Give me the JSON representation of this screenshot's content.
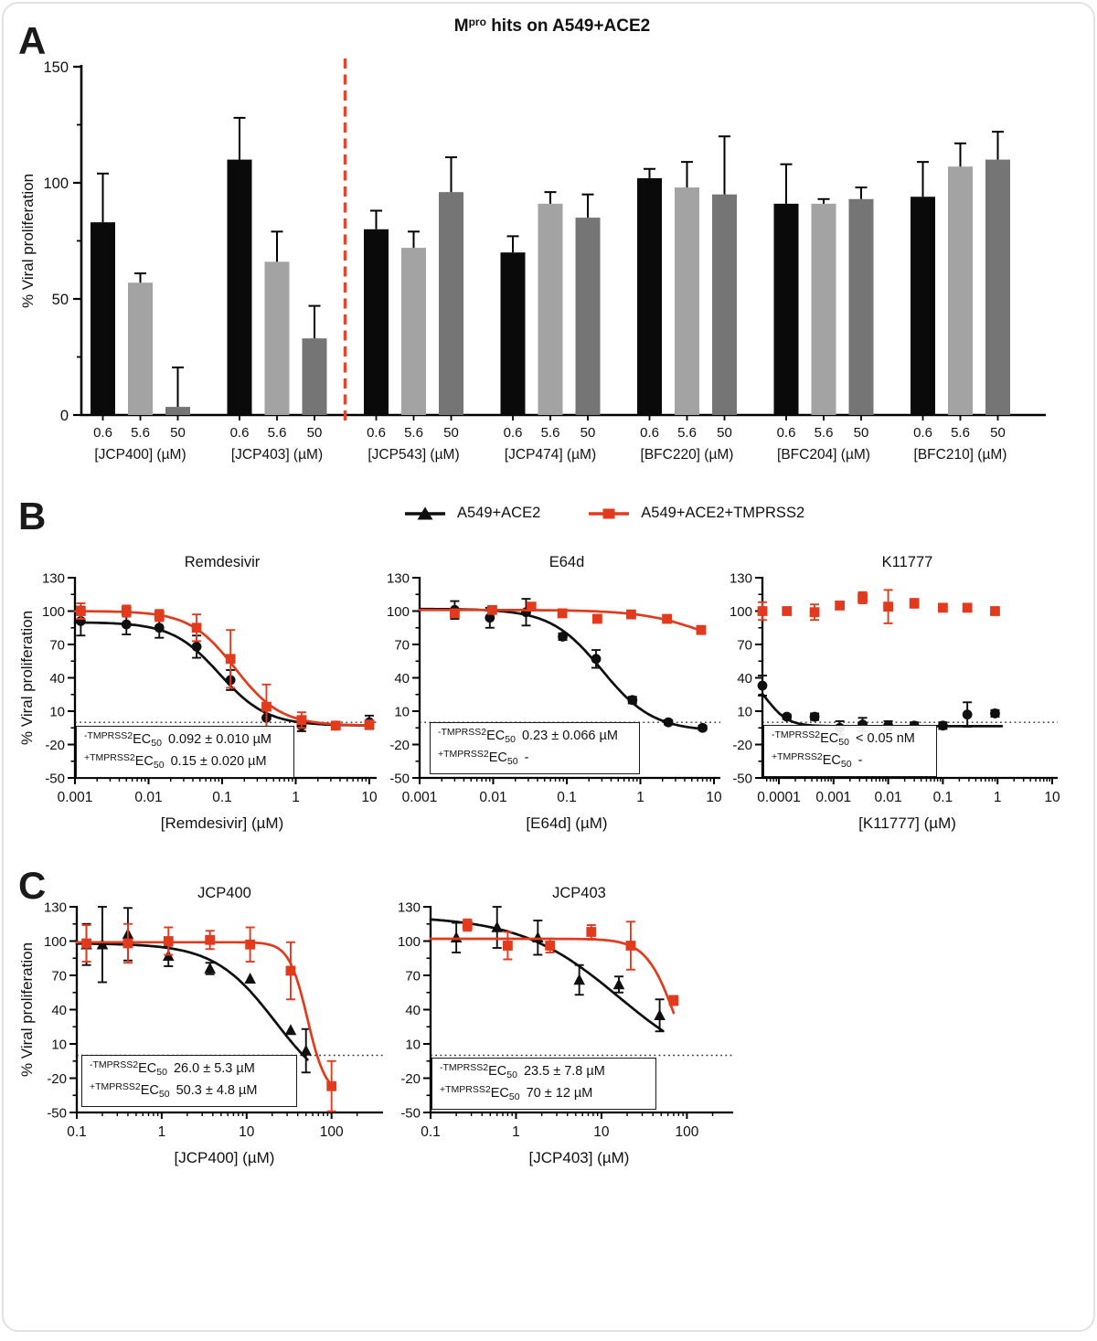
{
  "figure": {
    "panels": {
      "a": "A",
      "b": "B",
      "c": "C"
    },
    "title": {
      "base": "M",
      "sup": "pro",
      "rest": " hits on A549+ACE2"
    }
  },
  "legend": {
    "items": [
      {
        "label": "A549+ACE2",
        "marker": "triangle",
        "color": "#0f0f0f"
      },
      {
        "label": "A549+ACE2+TMPRSS2",
        "marker": "square",
        "color": "#e23a1d"
      }
    ]
  },
  "colors": {
    "black_series": "#0f0f0f",
    "red_series": "#e23a1d",
    "separator_red": "#e8432b",
    "bar_black": "#0a0a0a",
    "bar_light_gray": "#a3a3a3",
    "bar_dark_gray": "#757575",
    "dotted_line": "#333333"
  },
  "chart_data": [
    {
      "id": "mpro-bars",
      "type": "bar",
      "title": "Mpro hits on A549+ACE2",
      "ylabel": "% Viral proliferation",
      "ylim": [
        0,
        150
      ],
      "yticks": [
        0,
        50,
        100,
        150
      ],
      "yminor": [
        25,
        75,
        125
      ],
      "grid": false,
      "separator_after_category": 2,
      "categories": [
        "[JCP400] (µM)",
        "[JCP403] (µM)",
        "[JCP543] (µM)",
        "[JCP474] (µM)",
        "[BFC220] (µM)",
        "[BFC204] (µM)",
        "[BFC210] (µM)"
      ],
      "series": [
        {
          "name": "0.6",
          "color": "#0a0a0a",
          "values": [
            83,
            110,
            80,
            70,
            102,
            91,
            94
          ],
          "errors": [
            21,
            18,
            8,
            7,
            4,
            17,
            15
          ]
        },
        {
          "name": "5.6",
          "color": "#a3a3a3",
          "values": [
            57,
            66,
            72,
            91,
            98,
            91,
            107
          ],
          "errors": [
            4,
            13,
            7,
            5,
            11,
            2,
            10
          ]
        },
        {
          "name": "50",
          "color": "#757575",
          "values": [
            3.5,
            33,
            96,
            85,
            95,
            93,
            110
          ],
          "errors": [
            17,
            14,
            15,
            10,
            25,
            5,
            12
          ]
        }
      ]
    },
    {
      "id": "remdesivir",
      "type": "scatter",
      "title": "Remdesivir",
      "xlabel": "[Remdesivir] (µM)",
      "ylabel": "% Viral proliferation",
      "xlim": [
        0.001,
        10
      ],
      "xticks": [
        0.001,
        0.01,
        0.1,
        1,
        10
      ],
      "ylim": [
        -50,
        130
      ],
      "yticks": [
        130,
        100,
        70,
        40,
        10,
        -20,
        -50
      ],
      "dotted_y": 0,
      "series": [
        {
          "name": "A549+ACE2",
          "marker": "circle",
          "color": "#0f0f0f",
          "x": [
            0.0012,
            0.005,
            0.014,
            0.045,
            0.13,
            0.4,
            1.2,
            3.5,
            10
          ],
          "y": [
            91,
            88,
            85,
            68,
            38,
            4,
            -3,
            -3,
            0
          ],
          "err": [
            13,
            9,
            9,
            10,
            9,
            10,
            5,
            2,
            6
          ],
          "curve": {
            "top": 90,
            "bottom": -3,
            "ec50": 0.092,
            "hill": 1.35,
            "xrange": [
              0.001,
              10
            ]
          }
        },
        {
          "name": "A549+ACE2+TMPRSS2",
          "marker": "square",
          "color": "#e23a1d",
          "x": [
            0.0012,
            0.005,
            0.014,
            0.045,
            0.13,
            0.4,
            1.2,
            3.5,
            10
          ],
          "y": [
            100,
            100,
            96,
            85,
            57,
            14,
            2,
            -3,
            -2
          ],
          "err": [
            7,
            5,
            5,
            12,
            26,
            20,
            7,
            2,
            3
          ],
          "curve": {
            "top": 100,
            "bottom": -3,
            "ec50": 0.15,
            "hill": 1.4,
            "xrange": [
              0.001,
              10
            ]
          }
        }
      ],
      "annotation": {
        "lines": [
          {
            "sup": "-TMPRSS2",
            "base": "EC",
            "sub": "50",
            "value": "0.092 ± 0.010 µM"
          },
          {
            "sup": "+TMPRSS2",
            "base": "EC",
            "sub": "50",
            "value": "0.15 ± 0.020 µM"
          }
        ]
      }
    },
    {
      "id": "e64d",
      "type": "scatter",
      "title": "E64d",
      "xlabel": "[E64d] (µM)",
      "ylabel": "",
      "xlim": [
        0.001,
        10
      ],
      "xticks": [
        0.001,
        0.01,
        0.1,
        1,
        10
      ],
      "ylim": [
        -50,
        130
      ],
      "yticks": [
        130,
        100,
        70,
        40,
        10,
        -20,
        -50
      ],
      "dotted_y": 0,
      "series": [
        {
          "name": "A549+ACE2",
          "marker": "circle",
          "color": "#0f0f0f",
          "x": [
            0.003,
            0.009,
            0.028,
            0.088,
            0.25,
            0.78,
            2.4,
            7
          ],
          "y": [
            101,
            94,
            99,
            77,
            57,
            20,
            0,
            -5
          ],
          "err": [
            8,
            9,
            12,
            3,
            8,
            3,
            2,
            2
          ],
          "curve": {
            "top": 102,
            "bottom": -8,
            "ec50": 0.3,
            "hill": 1.25,
            "xrange": [
              0.001,
              7
            ]
          }
        },
        {
          "name": "A549+ACE2+TMPRSS2",
          "marker": "square",
          "color": "#e23a1d",
          "x": [
            0.003,
            0.0097,
            0.033,
            0.087,
            0.26,
            0.75,
            2.3,
            6.7
          ],
          "y": [
            98,
            101,
            104,
            98,
            93,
            97,
            93,
            83
          ],
          "err": [
            3,
            3,
            3,
            2,
            2,
            3,
            2,
            2
          ],
          "curve": {
            "top": 101,
            "bottom": 60,
            "ec50": 8,
            "hill": 1.0,
            "xrange": [
              0.001,
              6.7
            ]
          }
        }
      ],
      "annotation": {
        "lines": [
          {
            "sup": "-TMPRSS2",
            "base": "EC",
            "sub": "50",
            "value": "0.23 ± 0.066 µM"
          },
          {
            "sup": "+TMPRSS2",
            "base": "EC",
            "sub": "50",
            "value": "-"
          }
        ]
      }
    },
    {
      "id": "k11777",
      "type": "scatter",
      "title": "K11777",
      "xlabel": "[K11777] (µM)",
      "ylabel": "",
      "xlim": [
        5e-05,
        10
      ],
      "xticks": [
        0.0001,
        0.001,
        0.01,
        0.1,
        1,
        10
      ],
      "ylim": [
        -50,
        130
      ],
      "yticks": [
        130,
        100,
        70,
        40,
        10,
        -20,
        -50
      ],
      "dotted_y": 0,
      "series": [
        {
          "name": "A549+ACE2",
          "marker": "circle",
          "color": "#0f0f0f",
          "x": [
            5e-05,
            0.00014,
            0.00045,
            0.0013,
            0.0034,
            0.01,
            0.03,
            0.1,
            0.28,
            0.9
          ],
          "y": [
            33,
            5,
            5,
            -5,
            -2,
            -3,
            -3,
            -3,
            7,
            8
          ],
          "err": [
            9,
            2,
            3,
            6,
            6,
            4,
            3,
            3,
            11,
            3
          ],
          "curve": {
            "top": 45,
            "bottom": -3.5,
            "ec50": 6e-05,
            "hill": 2.2,
            "xrange": [
              5e-05,
              1.2
            ]
          }
        },
        {
          "name": "A549+ACE2+TMPRSS2",
          "marker": "square",
          "color": "#e23a1d",
          "x": [
            5e-05,
            0.00014,
            0.00045,
            0.0013,
            0.0034,
            0.01,
            0.03,
            0.1,
            0.28,
            0.9
          ],
          "y": [
            100,
            100,
            99,
            105,
            112,
            104,
            107,
            103,
            103,
            100
          ],
          "err": [
            8,
            3,
            7,
            3,
            5,
            15,
            4,
            3,
            3,
            3
          ],
          "curve": null
        }
      ],
      "annotation": {
        "lines": [
          {
            "sup": "-TMPRSS2",
            "base": "EC",
            "sub": "50",
            "value": "< 0.05 nM"
          },
          {
            "sup": "+TMPRSS2",
            "base": "EC",
            "sub": "50",
            "value": "-"
          }
        ]
      }
    },
    {
      "id": "jcp400",
      "type": "scatter",
      "title": "JCP400",
      "xlabel": "[JCP400] (µM)",
      "ylabel": "% Viral proliferation",
      "xlim": [
        0.1,
        300
      ],
      "xticks": [
        0.1,
        1,
        10,
        100
      ],
      "ylim": [
        -50,
        130
      ],
      "yticks": [
        130,
        100,
        70,
        40,
        10,
        -20,
        -50
      ],
      "dotted_y": 0,
      "series": [
        {
          "name": "A549+ACE2",
          "marker": "triangle",
          "color": "#0f0f0f",
          "x": [
            0.13,
            0.2,
            0.4,
            1.2,
            3.7,
            11,
            33,
            50
          ],
          "y": [
            97,
            97,
            106,
            87,
            76,
            67,
            22,
            4
          ],
          "err": [
            18,
            33,
            23,
            9,
            5,
            0,
            0,
            19
          ],
          "curve": {
            "top": 98,
            "bottom": -40,
            "ec50": 22,
            "hill": 1.2,
            "xrange": [
              0.1,
              52
            ]
          }
        },
        {
          "name": "A549+ACE2+TMPRSS2",
          "marker": "square",
          "color": "#e23a1d",
          "x": [
            0.13,
            0.4,
            1.2,
            3.7,
            11,
            33,
            100
          ],
          "y": [
            98,
            98,
            100,
            101,
            97,
            74,
            -27
          ],
          "err": [
            16,
            17,
            12,
            8,
            15,
            25,
            22
          ],
          "curve": {
            "top": 99,
            "bottom": -35,
            "ec50": 52,
            "hill": 4.0,
            "xrange": [
              0.1,
              100
            ]
          }
        }
      ],
      "annotation": {
        "lines": [
          {
            "sup": "-TMPRSS2",
            "base": "EC",
            "sub": "50",
            "value": "26.0 ± 5.3 µM"
          },
          {
            "sup": "+TMPRSS2",
            "base": "EC",
            "sub": "50",
            "value": "50.3 ± 4.8 µM"
          }
        ]
      }
    },
    {
      "id": "jcp403",
      "type": "scatter",
      "title": "JCP403",
      "xlabel": "[JCP403] (µM)",
      "ylabel": "",
      "xlim": [
        0.1,
        300
      ],
      "xticks": [
        0.1,
        1,
        10,
        100
      ],
      "ylim": [
        -50,
        130
      ],
      "yticks": [
        130,
        100,
        70,
        40,
        10,
        -20,
        -50
      ],
      "dotted_y": 0,
      "series": [
        {
          "name": "A549+ACE2",
          "marker": "triangle",
          "color": "#0f0f0f",
          "x": [
            0.2,
            0.6,
            1.8,
            5.5,
            16,
            48
          ],
          "y": [
            103,
            112,
            103,
            66,
            62,
            35
          ],
          "err": [
            13,
            18,
            15,
            13,
            7,
            14
          ],
          "curve": {
            "top": 122,
            "bottom": -20,
            "ec50": 16,
            "hill": 0.75,
            "xrange": [
              0.1,
              52
            ]
          }
        },
        {
          "name": "A549+ACE2+TMPRSS2",
          "marker": "square",
          "color": "#e23a1d",
          "x": [
            0.27,
            0.8,
            2.5,
            7.6,
            22,
            70
          ],
          "y": [
            114,
            96,
            96,
            108,
            96,
            48
          ],
          "err": [
            5,
            12,
            6,
            6,
            21,
            4
          ],
          "curve": {
            "top": 102,
            "bottom": -40,
            "ec50": 75,
            "hill": 2.5,
            "xrange": [
              0.1,
              70
            ]
          }
        }
      ],
      "annotation": {
        "lines": [
          {
            "sup": "-TMPRSS2",
            "base": "EC",
            "sub": "50",
            "value": "23.5 ± 7.8 µM"
          },
          {
            "sup": "+TMPRSS2",
            "base": "EC",
            "sub": "50",
            "value": "70 ± 12 µM"
          }
        ]
      }
    }
  ]
}
